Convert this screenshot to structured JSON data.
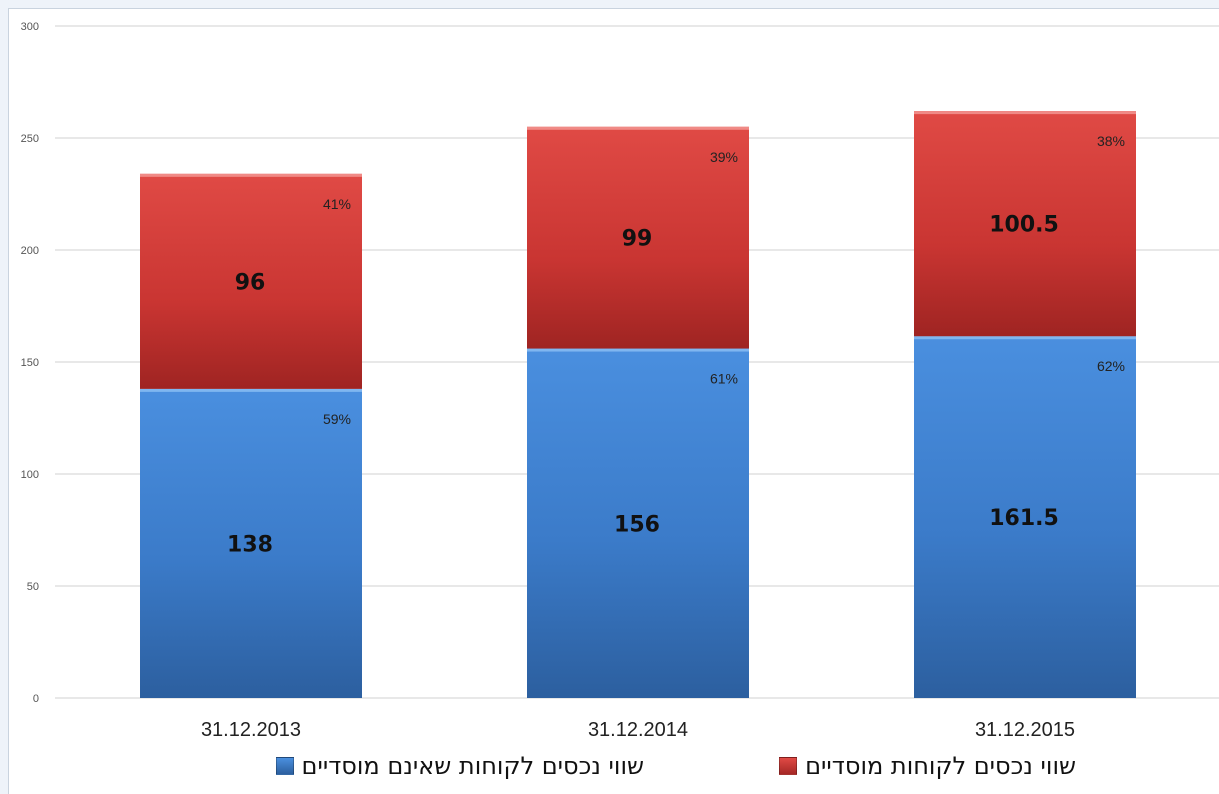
{
  "chart_data": {
    "type": "bar",
    "stacked": true,
    "categories": [
      "31.12.2013",
      "31.12.2014",
      "31.12.2015"
    ],
    "series": [
      {
        "name": "שווי נכסים לקוחות שאינם מוסדיים",
        "color": "#3d7fd0",
        "values": [
          138,
          156,
          161.5
        ],
        "value_labels": [
          "138",
          "156",
          "161.5"
        ],
        "percent_labels": [
          "59%",
          "61%",
          "62%"
        ]
      },
      {
        "name": "שווי נכסים לקוחות מוסדיים",
        "color": "#d23a37",
        "values": [
          96,
          99,
          100.5
        ],
        "value_labels": [
          "96",
          "99",
          "100.5"
        ],
        "percent_labels": [
          "41%",
          "39%",
          "38%"
        ]
      }
    ],
    "ylim": [
      0,
      300
    ],
    "yticks": [
      "0",
      "50",
      "100",
      "150",
      "200",
      "250",
      "300"
    ],
    "grid": true,
    "legend_position": "bottom"
  }
}
